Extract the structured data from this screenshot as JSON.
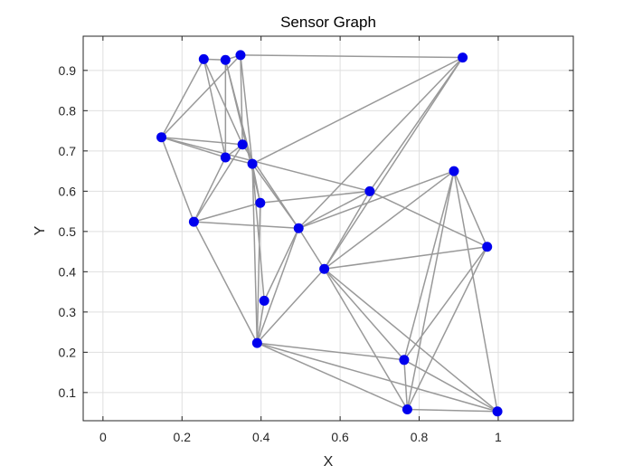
{
  "chart_data": {
    "type": "graph",
    "title": "Sensor Graph",
    "xlabel": "X",
    "ylabel": "Y",
    "xlim": [
      -0.05,
      1.19
    ],
    "ylim": [
      0.03,
      0.985
    ],
    "xticks": [
      0,
      0.2,
      0.4,
      0.6,
      0.8,
      1
    ],
    "xtick_labels": [
      "0",
      "0.2",
      "0.4",
      "0.6",
      "0.8",
      "1"
    ],
    "yticks": [
      0.1,
      0.2,
      0.3,
      0.4,
      0.5,
      0.6,
      0.7,
      0.8,
      0.9
    ],
    "ytick_labels": [
      "0.1",
      "0.2",
      "0.3",
      "0.4",
      "0.5",
      "0.6",
      "0.7",
      "0.8",
      "0.9"
    ],
    "grid": true,
    "node_color": "#0000ee",
    "edge_color": "#999999",
    "nodes": [
      {
        "x": 0.255,
        "y": 0.928
      },
      {
        "x": 0.31,
        "y": 0.926
      },
      {
        "x": 0.348,
        "y": 0.938
      },
      {
        "x": 0.91,
        "y": 0.932
      },
      {
        "x": 0.148,
        "y": 0.734
      },
      {
        "x": 0.353,
        "y": 0.716
      },
      {
        "x": 0.31,
        "y": 0.684
      },
      {
        "x": 0.378,
        "y": 0.668
      },
      {
        "x": 0.888,
        "y": 0.65
      },
      {
        "x": 0.675,
        "y": 0.6
      },
      {
        "x": 0.398,
        "y": 0.571
      },
      {
        "x": 0.23,
        "y": 0.524
      },
      {
        "x": 0.495,
        "y": 0.508
      },
      {
        "x": 0.972,
        "y": 0.462
      },
      {
        "x": 0.56,
        "y": 0.407
      },
      {
        "x": 0.408,
        "y": 0.328
      },
      {
        "x": 0.39,
        "y": 0.223
      },
      {
        "x": 0.762,
        "y": 0.181
      },
      {
        "x": 0.77,
        "y": 0.058
      },
      {
        "x": 0.998,
        "y": 0.053
      }
    ],
    "edges": [
      [
        0,
        1
      ],
      [
        0,
        4
      ],
      [
        0,
        5
      ],
      [
        0,
        6
      ],
      [
        1,
        2
      ],
      [
        1,
        6
      ],
      [
        1,
        7
      ],
      [
        1,
        10
      ],
      [
        2,
        3
      ],
      [
        2,
        4
      ],
      [
        2,
        5
      ],
      [
        2,
        7
      ],
      [
        3,
        7
      ],
      [
        3,
        9
      ],
      [
        3,
        12
      ],
      [
        3,
        14
      ],
      [
        4,
        5
      ],
      [
        4,
        6
      ],
      [
        4,
        11
      ],
      [
        4,
        9
      ],
      [
        5,
        6
      ],
      [
        5,
        11
      ],
      [
        5,
        12
      ],
      [
        6,
        7
      ],
      [
        6,
        11
      ],
      [
        7,
        12
      ],
      [
        7,
        10
      ],
      [
        7,
        16
      ],
      [
        7,
        15
      ],
      [
        8,
        12
      ],
      [
        8,
        14
      ],
      [
        8,
        17
      ],
      [
        8,
        18
      ],
      [
        8,
        19
      ],
      [
        8,
        13
      ],
      [
        9,
        10
      ],
      [
        9,
        12
      ],
      [
        9,
        13
      ],
      [
        9,
        14
      ],
      [
        10,
        11
      ],
      [
        10,
        16
      ],
      [
        11,
        12
      ],
      [
        11,
        16
      ],
      [
        12,
        14
      ],
      [
        12,
        15
      ],
      [
        12,
        16
      ],
      [
        13,
        14
      ],
      [
        13,
        17
      ],
      [
        13,
        18
      ],
      [
        14,
        16
      ],
      [
        14,
        17
      ],
      [
        14,
        18
      ],
      [
        14,
        19
      ],
      [
        15,
        16
      ],
      [
        16,
        17
      ],
      [
        16,
        18
      ],
      [
        16,
        19
      ],
      [
        17,
        18
      ],
      [
        17,
        19
      ],
      [
        18,
        19
      ]
    ]
  }
}
